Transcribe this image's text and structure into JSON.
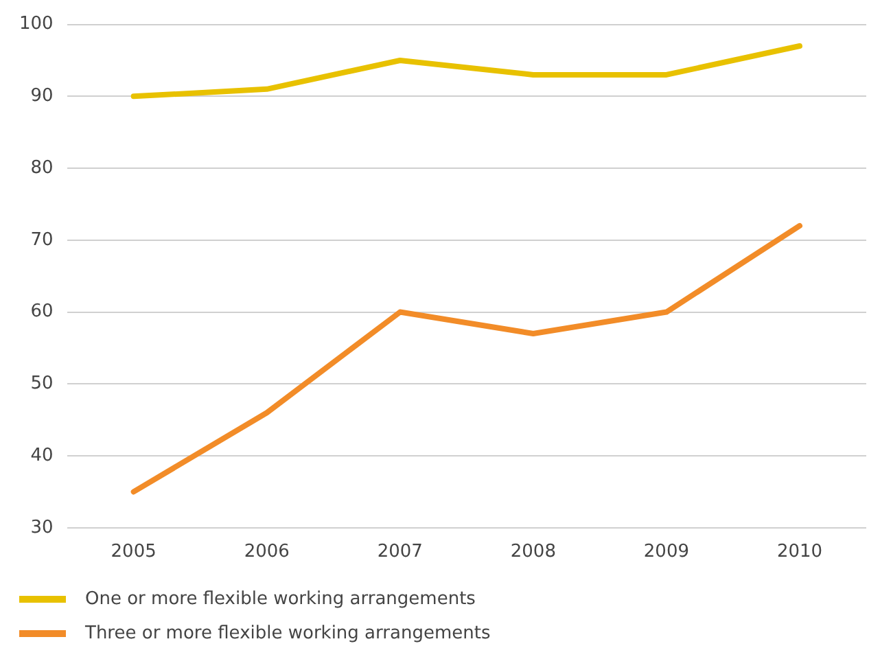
{
  "chart_data": {
    "type": "line",
    "categories": [
      "2005",
      "2006",
      "2007",
      "2008",
      "2009",
      "2010"
    ],
    "series": [
      {
        "name": "One or more flexible working arrangements",
        "color": "#e8c100",
        "values": [
          90,
          91,
          95,
          93,
          93,
          97
        ]
      },
      {
        "name": "Three or more flexible working arrangements",
        "color": "#f28c28",
        "values": [
          35,
          46,
          60,
          57,
          60,
          72
        ]
      }
    ],
    "ylim": [
      30,
      100
    ],
    "yticks": [
      30,
      40,
      50,
      60,
      70,
      80,
      90,
      100
    ],
    "grid": "y",
    "legend": "bottom left",
    "marker": "none",
    "line_style": "solid"
  }
}
